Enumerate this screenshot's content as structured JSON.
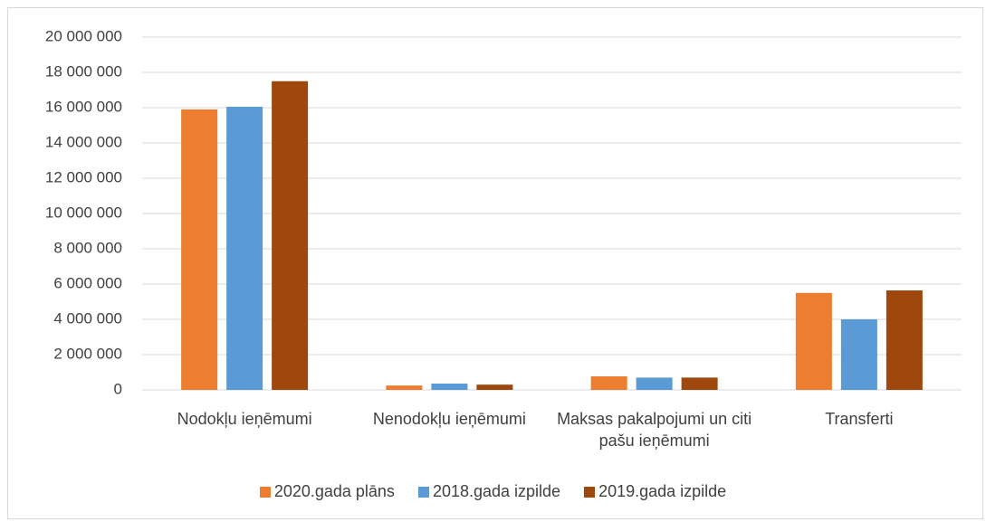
{
  "chart_data": {
    "type": "bar",
    "categories": [
      "Nodokļu ieņēmumi",
      "Nenodokļu ieņēmumi",
      "Maksas pakalpojumi un citi pašu ieņēmumi",
      "Transferti"
    ],
    "series": [
      {
        "name": "2020.gada plāns",
        "color": "#ed7d31",
        "values": [
          15900000,
          250000,
          770000,
          5500000
        ]
      },
      {
        "name": "2018.gada izpilde",
        "color": "#5b9bd5",
        "values": [
          16050000,
          360000,
          700000,
          4000000
        ]
      },
      {
        "name": "2019.gada izpilde",
        "color": "#9e480e",
        "values": [
          17500000,
          300000,
          700000,
          5640000
        ]
      }
    ],
    "ylim": [
      0,
      20000000
    ],
    "yticks": [
      0,
      {
        "value": 2000000,
        "label": "2 000 000"
      },
      {
        "value": 4000000,
        "label": "4 000 000"
      },
      {
        "value": 6000000,
        "label": "6 000 000"
      },
      {
        "value": 8000000,
        "label": "8 000 000"
      },
      {
        "value": 10000000,
        "label": "10 000 000"
      },
      {
        "value": 12000000,
        "label": "12 000 000"
      },
      {
        "value": 14000000,
        "label": "14 000 000"
      },
      {
        "value": 16000000,
        "label": "16 000 000"
      },
      {
        "value": 18000000,
        "label": "18 000 000"
      },
      {
        "value": 20000000,
        "label": "20 000 000"
      }
    ],
    "grid": true
  }
}
